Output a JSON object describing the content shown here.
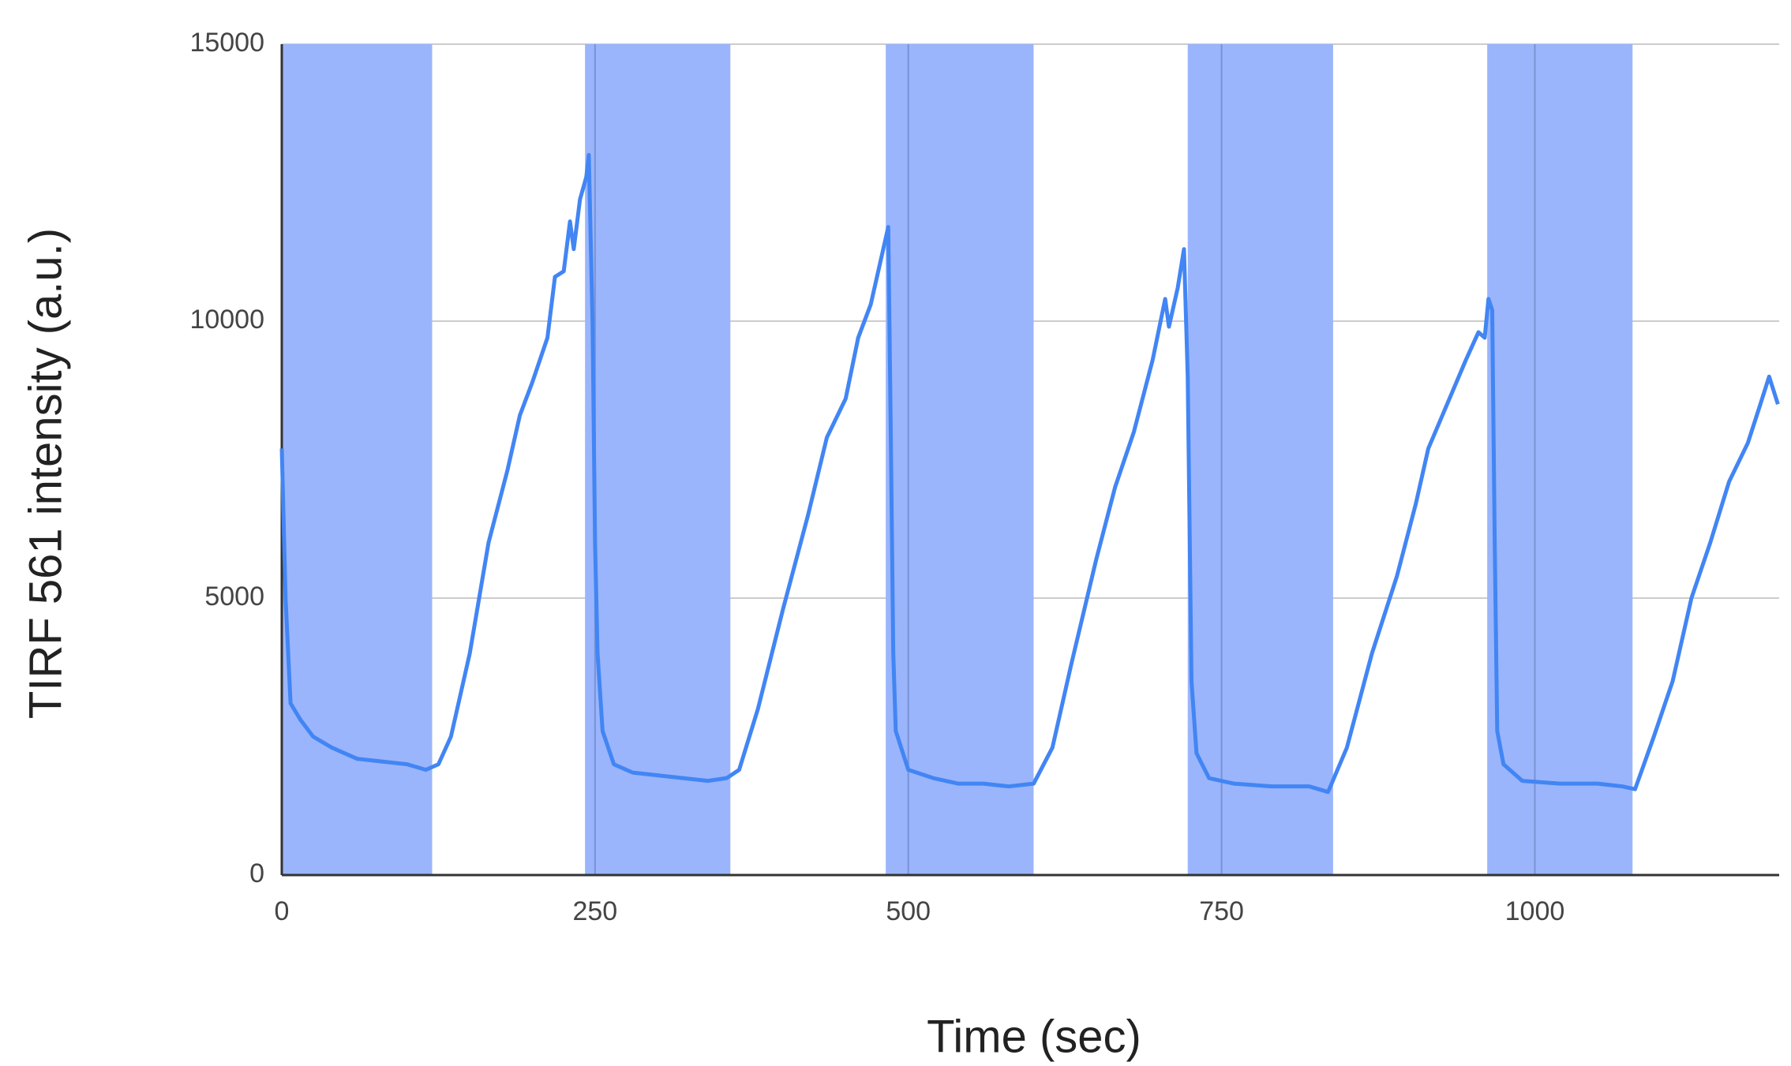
{
  "chart_data": {
    "type": "line",
    "x_label": "Time (sec)",
    "y_label": "TIRF 561 intensity (a.u.)",
    "color": "#4285f4",
    "band_color": "#9ab5fb",
    "bands": [
      [
        0,
        120
      ],
      [
        242,
        358
      ],
      [
        482,
        600
      ],
      [
        723,
        839
      ],
      [
        962,
        1078
      ]
    ],
    "x": [
      0,
      3,
      7,
      15,
      25,
      40,
      60,
      80,
      100,
      115,
      125,
      135,
      150,
      165,
      180,
      190,
      200,
      212,
      218,
      225,
      230,
      233,
      238,
      243,
      245,
      248,
      250,
      252,
      256,
      265,
      280,
      300,
      320,
      340,
      355,
      365,
      380,
      400,
      420,
      435,
      450,
      460,
      470,
      478,
      484,
      486,
      488,
      490,
      500,
      520,
      540,
      560,
      580,
      600,
      615,
      630,
      650,
      665,
      680,
      695,
      705,
      708,
      715,
      720,
      723,
      726,
      730,
      740,
      760,
      790,
      820,
      835,
      850,
      870,
      890,
      905,
      915,
      930,
      945,
      955,
      960,
      963,
      966,
      968,
      970,
      975,
      990,
      1020,
      1050,
      1070,
      1080,
      1095,
      1110,
      1125,
      1140,
      1155,
      1170,
      1180,
      1187,
      1194
    ],
    "values": [
      7700,
      5000,
      3100,
      2800,
      2500,
      2300,
      2100,
      2050,
      2000,
      1900,
      2000,
      2500,
      4000,
      6000,
      7300,
      8300,
      8900,
      9700,
      10800,
      10900,
      11800,
      11300,
      12200,
      12600,
      13000,
      10000,
      6000,
      4000,
      2600,
      2000,
      1850,
      1800,
      1750,
      1700,
      1750,
      1900,
      3000,
      4800,
      6500,
      7900,
      8600,
      9700,
      10300,
      11100,
      11700,
      8000,
      4000,
      2600,
      1900,
      1750,
      1650,
      1650,
      1600,
      1650,
      2300,
      3800,
      5700,
      7000,
      8000,
      9300,
      10400,
      9900,
      10600,
      11300,
      9000,
      3500,
      2200,
      1750,
      1650,
      1600,
      1600,
      1500,
      2300,
      4000,
      5400,
      6700,
      7700,
      8500,
      9300,
      9800,
      9700,
      10400,
      10200,
      6000,
      2600,
      2000,
      1700,
      1650,
      1650,
      1600,
      1550,
      2500,
      3500,
      5000,
      6000,
      7100,
      7800,
      8500,
      9000,
      8500
    ],
    "xlim": [
      0,
      1195
    ],
    "ylim": [
      0,
      15000
    ],
    "xticks": [
      0,
      250,
      500,
      750,
      1000
    ],
    "yticks": [
      0,
      5000,
      10000,
      15000
    ],
    "grid": true
  }
}
